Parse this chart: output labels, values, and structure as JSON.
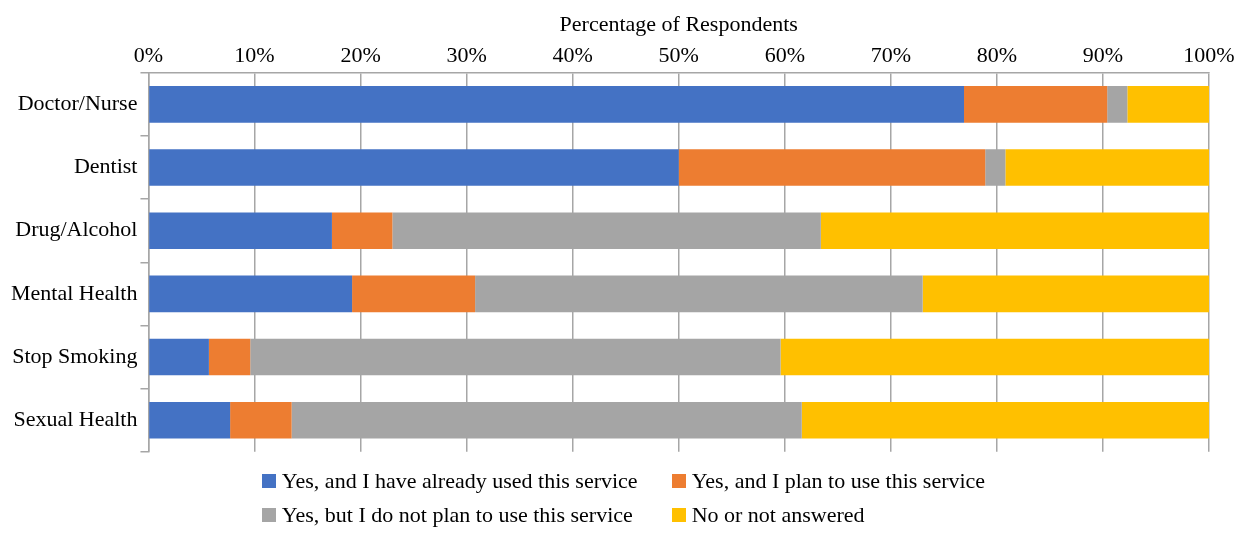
{
  "chart_data": {
    "type": "bar",
    "orientation": "horizontal",
    "stacked": true,
    "xlabel": "Percentage of Respondents",
    "categories": [
      "Doctor/Nurse",
      "Dentist",
      "Drug/Alcohol",
      "Mental Health",
      "Stop Smoking",
      "Sexual Health"
    ],
    "series": [
      {
        "name": "Yes, and I have already used this service",
        "color": "#4472c4",
        "values": [
          76.9,
          50.0,
          17.3,
          19.2,
          5.7,
          7.7
        ]
      },
      {
        "name": "Yes, and I plan to use this service",
        "color": "#ed7d31",
        "values": [
          13.5,
          28.9,
          5.7,
          11.6,
          3.9,
          5.8
        ]
      },
      {
        "name": "Yes, but I do not plan to use this service",
        "color": "#a5a5a5",
        "values": [
          1.9,
          1.9,
          40.4,
          42.2,
          50.0,
          48.1
        ]
      },
      {
        "name": "No or not answered",
        "color": "#ffc000",
        "values": [
          7.7,
          19.2,
          36.6,
          27.0,
          40.4,
          38.4
        ]
      }
    ],
    "xlim": [
      0,
      100
    ],
    "xticks": [
      {
        "value": 0,
        "label": "0%"
      },
      {
        "value": 10,
        "label": "10%"
      },
      {
        "value": 20,
        "label": "20%"
      },
      {
        "value": 30,
        "label": "30%"
      },
      {
        "value": 40,
        "label": "40%"
      },
      {
        "value": 50,
        "label": "50%"
      },
      {
        "value": 60,
        "label": "60%"
      },
      {
        "value": 70,
        "label": "70%"
      },
      {
        "value": 80,
        "label": "80%"
      },
      {
        "value": 90,
        "label": "90%"
      },
      {
        "value": 100,
        "label": "100%"
      }
    ],
    "grid": "x",
    "legend": "bottom"
  }
}
